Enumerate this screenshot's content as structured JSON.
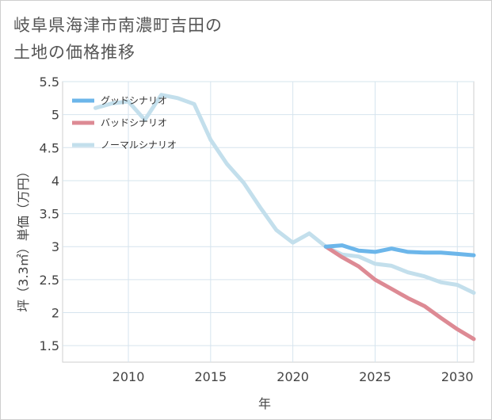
{
  "title_line1": "岐阜県海津市南濃町吉田の",
  "title_line2": "土地の価格推移",
  "chart_data": {
    "type": "line",
    "xlabel": "年",
    "ylabel": "坪（3.3㎡）単価（万円）",
    "xlim": [
      2006,
      2031
    ],
    "ylim": [
      1.25,
      5.5
    ],
    "x_ticks": [
      2010,
      2015,
      2020,
      2025,
      2030
    ],
    "y_ticks": [
      1.5,
      2,
      2.5,
      3,
      3.5,
      4,
      4.5,
      5,
      5.5
    ],
    "y_tick_labels": [
      "1.5",
      "2",
      "2.5",
      "3",
      "3.5",
      "4",
      "4.5",
      "5",
      "5.5"
    ],
    "grid": true,
    "legend_position": "top-left",
    "series": [
      {
        "name": "グッドシナリオ",
        "color": "#6cb6ea",
        "x": [
          2022,
          2023,
          2024,
          2025,
          2026,
          2027,
          2028,
          2029,
          2030,
          2031
        ],
        "y": [
          3.0,
          3.02,
          2.94,
          2.92,
          2.97,
          2.92,
          2.91,
          2.91,
          2.89,
          2.87
        ]
      },
      {
        "name": "バッドシナリオ",
        "color": "#dd8a94",
        "x": [
          2022,
          2023,
          2024,
          2025,
          2026,
          2027,
          2028,
          2029,
          2030,
          2031
        ],
        "y": [
          3.0,
          2.84,
          2.7,
          2.5,
          2.36,
          2.22,
          2.1,
          1.92,
          1.75,
          1.6
        ]
      },
      {
        "name": "ノーマルシナリオ",
        "color": "#c3dfec",
        "x": [
          2008,
          2009,
          2010,
          2011,
          2012,
          2013,
          2014,
          2015,
          2016,
          2017,
          2018,
          2019,
          2020,
          2021,
          2022,
          2023,
          2024,
          2025,
          2026,
          2027,
          2028,
          2029,
          2030,
          2031
        ],
        "y": [
          5.1,
          5.17,
          5.2,
          4.92,
          5.3,
          5.25,
          5.16,
          4.62,
          4.25,
          3.97,
          3.6,
          3.25,
          3.06,
          3.2,
          3.0,
          2.88,
          2.85,
          2.74,
          2.71,
          2.61,
          2.55,
          2.46,
          2.42,
          2.3
        ]
      }
    ]
  }
}
